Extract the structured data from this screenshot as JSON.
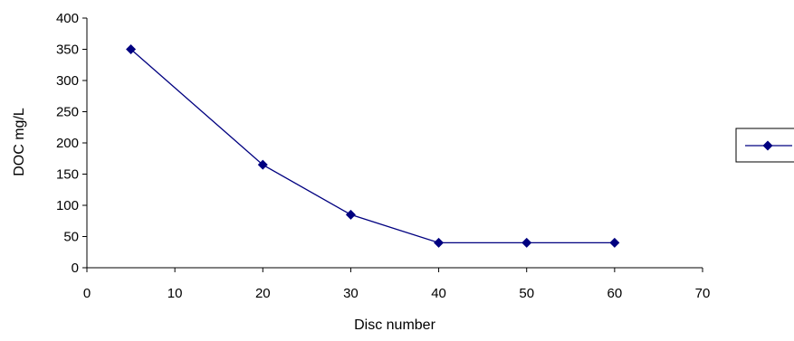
{
  "chart_data": {
    "type": "scatter",
    "title": "",
    "xlabel": "Disc number",
    "ylabel": "DOC mg/L",
    "xlim": [
      0,
      70
    ],
    "ylim": [
      0,
      400
    ],
    "x_ticks": [
      0,
      10,
      20,
      30,
      40,
      50,
      60,
      70
    ],
    "y_ticks": [
      0,
      50,
      100,
      150,
      200,
      250,
      300,
      350,
      400
    ],
    "grid": false,
    "legend": "right",
    "marker": "diamond",
    "series": [
      {
        "x": [
          5,
          20,
          30,
          40,
          50,
          60
        ],
        "y": [
          350,
          165,
          85,
          40,
          40,
          40
        ],
        "color": "#000080"
      }
    ]
  }
}
